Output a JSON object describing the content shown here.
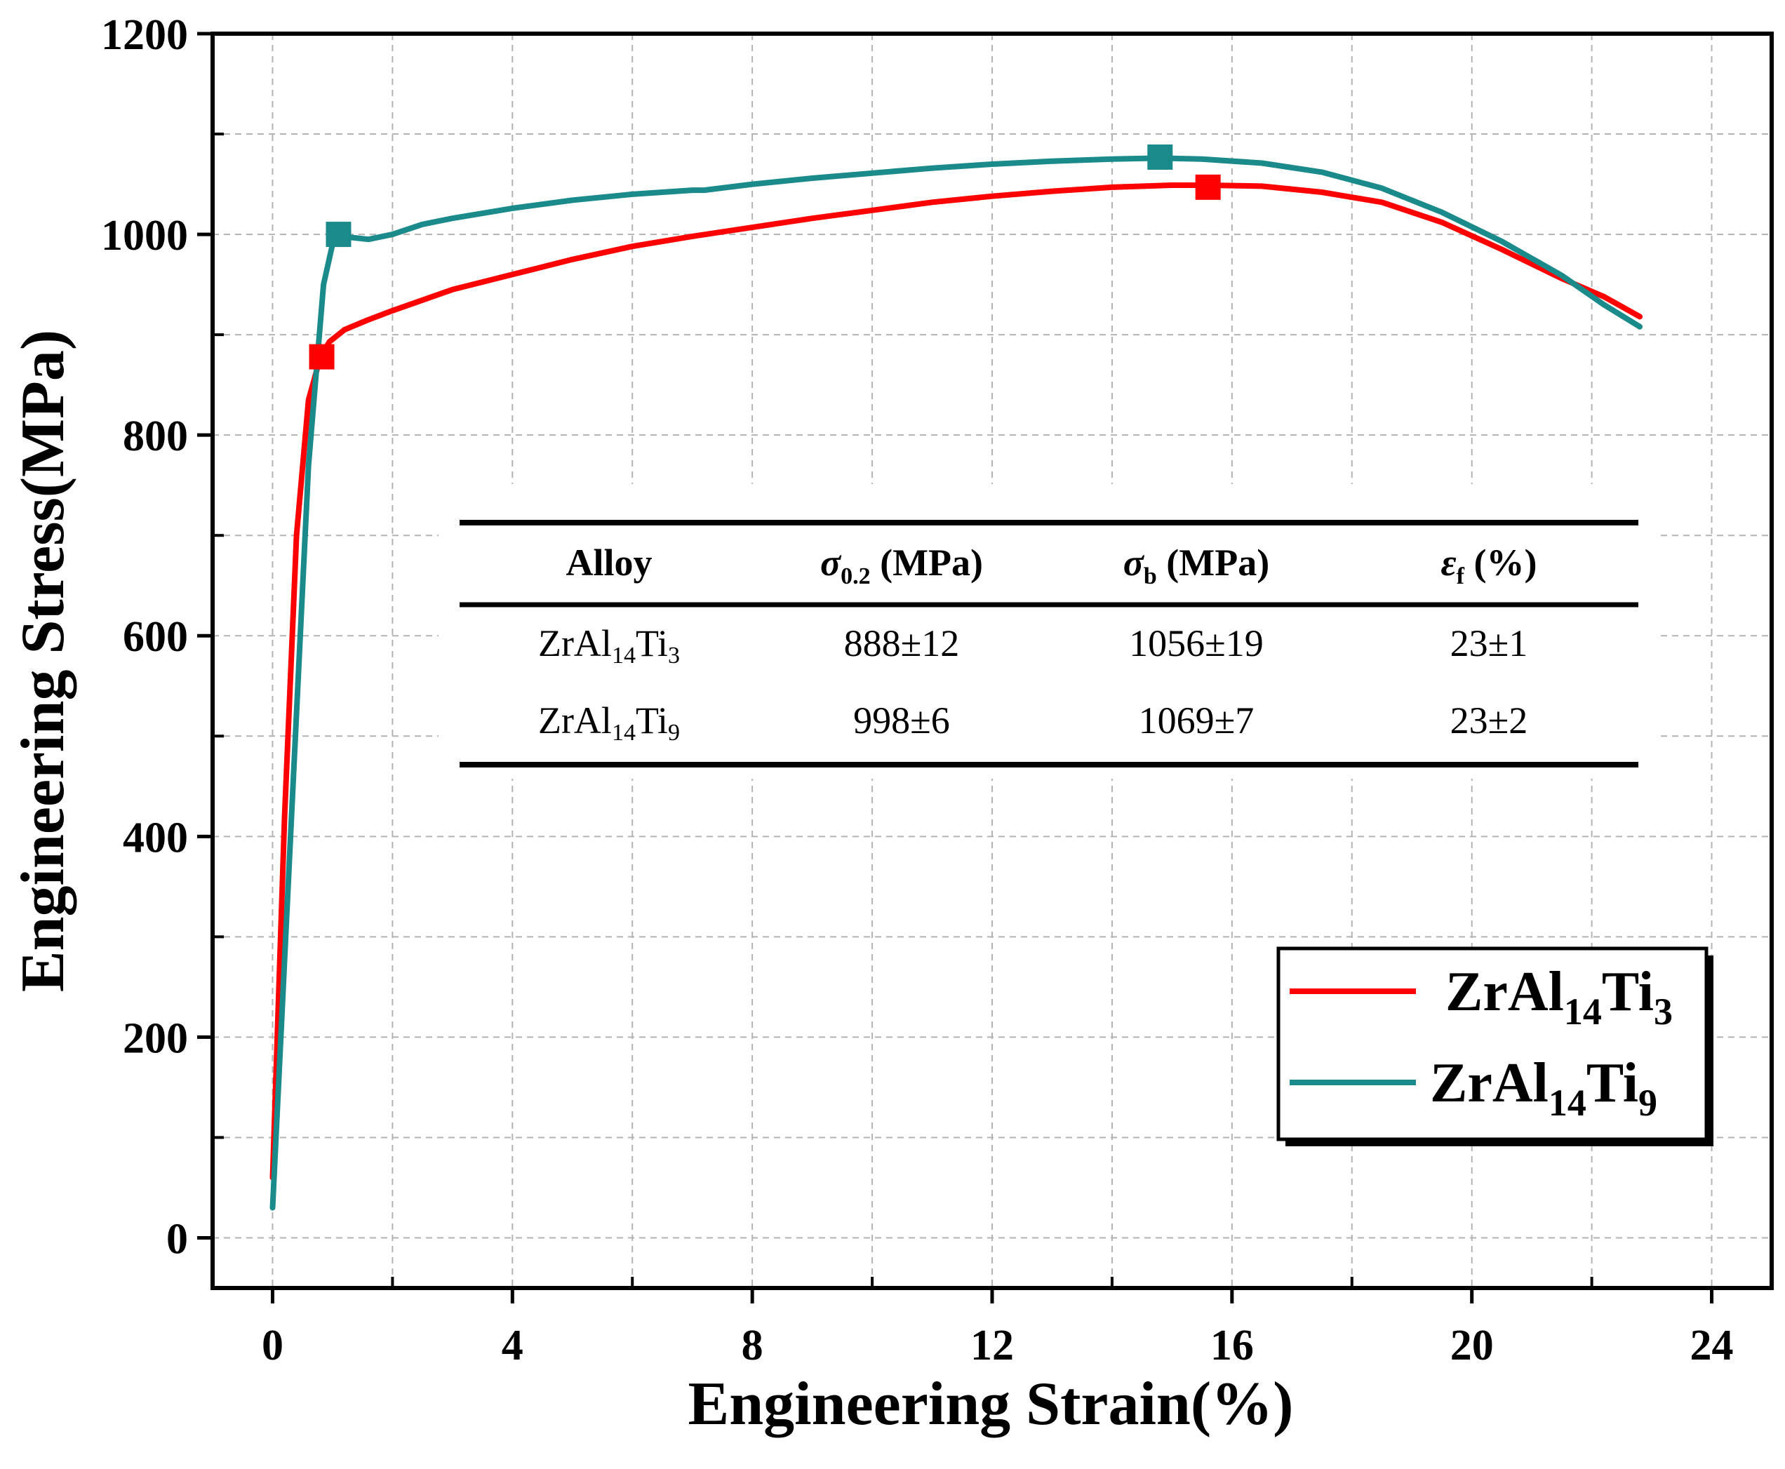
{
  "chart_data": {
    "type": "line",
    "xlabel": "Engineering Strain(%)",
    "ylabel": "Engineering Stress(MPa)",
    "xlim": [
      -1,
      25
    ],
    "ylim": [
      -50,
      1200
    ],
    "xticks": [
      0,
      4,
      8,
      12,
      16,
      20,
      24
    ],
    "xtick_labels": [
      "0",
      "4",
      "8",
      "12",
      "16",
      "20",
      "24"
    ],
    "yticks": [
      0,
      200,
      400,
      600,
      800,
      1000,
      1200
    ],
    "ytick_labels": [
      "0",
      "200",
      "400",
      "600",
      "800",
      "1000",
      "1200"
    ],
    "grid": true,
    "legend_position": "bottom-right",
    "series": [
      {
        "name": "ZrAl14Ti3",
        "label_base": "ZrAl",
        "label_sub1": "14",
        "label_mid": "Ti",
        "label_sub2": "3",
        "color": "#ff0000",
        "x": [
          0,
          0.2,
          0.4,
          0.6,
          0.8,
          0.95,
          1.2,
          1.6,
          2.0,
          3.0,
          4.0,
          5.0,
          6.0,
          7.0,
          8.0,
          9.0,
          10.0,
          11.0,
          12.0,
          13.0,
          14.0,
          15.0,
          15.6,
          16.5,
          17.5,
          18.5,
          19.5,
          20.5,
          21.5,
          22.2,
          22.8
        ],
        "y": [
          60,
          420,
          700,
          835,
          878,
          893,
          905,
          915,
          924,
          945,
          960,
          975,
          988,
          998,
          1007,
          1016,
          1024,
          1032,
          1038,
          1043,
          1047,
          1049,
          1049,
          1048,
          1042,
          1032,
          1012,
          985,
          956,
          938,
          918
        ]
      },
      {
        "name": "ZrAl14Ti9",
        "label_base": "ZrAl",
        "label_sub1": "14",
        "label_mid": "Ti",
        "label_sub2": "9",
        "color": "#1a8a8a",
        "x": [
          0,
          0.3,
          0.6,
          0.85,
          1.0,
          1.1,
          1.3,
          1.6,
          2.0,
          2.5,
          3.0,
          4.0,
          5.0,
          6.0,
          7.0,
          7.2,
          8.0,
          9.0,
          10.0,
          11.0,
          12.0,
          13.0,
          14.0,
          14.8,
          15.5,
          16.5,
          17.5,
          18.5,
          19.5,
          20.5,
          21.5,
          22.2,
          22.8
        ],
        "y": [
          30,
          400,
          770,
          950,
          990,
          1000,
          997,
          995,
          1000,
          1010,
          1016,
          1026,
          1034,
          1040,
          1044,
          1044,
          1050,
          1056,
          1061,
          1066,
          1070,
          1073,
          1075,
          1076,
          1075,
          1071,
          1062,
          1046,
          1022,
          993,
          959,
          930,
          908
        ]
      }
    ],
    "markers": [
      {
        "series": "ZrAl14Ti3",
        "x": 0.82,
        "y": 878,
        "color": "#ff0000"
      },
      {
        "series": "ZrAl14Ti3",
        "x": 15.6,
        "y": 1047,
        "color": "#ff0000"
      },
      {
        "series": "ZrAl14Ti9",
        "x": 1.1,
        "y": 1000,
        "color": "#1a8a8a"
      },
      {
        "series": "ZrAl14Ti9",
        "x": 14.8,
        "y": 1077,
        "color": "#1a8a8a"
      }
    ],
    "inset_table": {
      "headers": {
        "alloy": "Alloy",
        "yield_sym": "σ",
        "yield_sub": "0.2",
        "yield_unit": " (MPa)",
        "uts_sym": "σ",
        "uts_sub": "b",
        "uts_unit": " (MPa)",
        "elong_sym": "ε",
        "elong_sub": "f",
        "elong_unit": " (%)"
      },
      "rows": [
        {
          "alloy_base": "ZrAl",
          "alloy_sub1": "14",
          "alloy_mid": "Ti",
          "alloy_sub2": "3",
          "yield": "888±12",
          "uts": "1056±19",
          "elong": "23±1"
        },
        {
          "alloy_base": "ZrAl",
          "alloy_sub1": "14",
          "alloy_mid": "Ti",
          "alloy_sub2": "9",
          "yield": "998±6",
          "uts": "1069±7",
          "elong": "23±2"
        }
      ]
    }
  }
}
